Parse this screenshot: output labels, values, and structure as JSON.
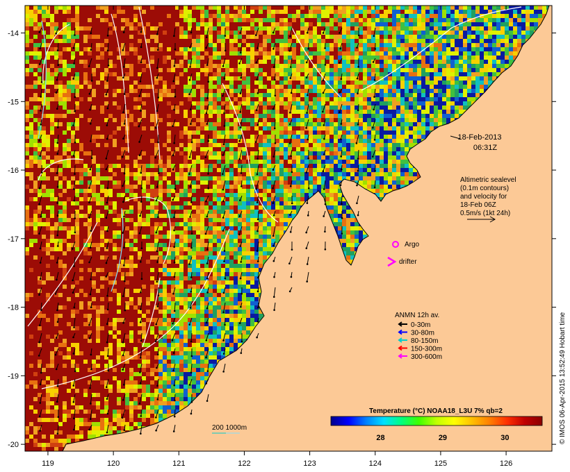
{
  "map": {
    "lon_range": [
      118.65,
      126.7
    ],
    "lat_range": [
      -20.1,
      -13.6
    ],
    "lon_ticks": [
      "119",
      "120",
      "121",
      "122",
      "123",
      "124",
      "125",
      "126"
    ],
    "lat_ticks": [
      "-14",
      "-15",
      "-16",
      "-17",
      "-18",
      "-19",
      "-20"
    ],
    "land_color": "#fcc996",
    "coast_color": "#000000"
  },
  "annotations": {
    "date_line1": "18-Feb-2013",
    "date_line2": "06:31Z",
    "alt_line1": "Altimetric sealevel",
    "alt_line2": "(0.1m contours)",
    "alt_line3": "and velocity for",
    "alt_line4": "18-Feb 06Z",
    "alt_line5": "0.5m/s (1kt 24h)",
    "argo_label": "Argo",
    "drifter_label": "drifter",
    "isobath_label": "200  1000m",
    "credit": "© IMOS 06-Apr-2015 13:52:49 Hobart time"
  },
  "legend": {
    "title": "ANMN 12h av.",
    "items": [
      {
        "label": "0-30m",
        "color": "#000000"
      },
      {
        "label": "30-80m",
        "color": "#0000ff"
      },
      {
        "label": "80-150m",
        "color": "#00cccc"
      },
      {
        "label": "150-300m",
        "color": "#ff0000"
      },
      {
        "label": "300-600m",
        "color": "#ff00ff"
      }
    ]
  },
  "colorbar": {
    "title": "Temperature (°C) NOAA18_L3U 7% qb=2",
    "range": [
      27.2,
      30.6
    ],
    "ticks": [
      "28",
      "29",
      "30"
    ],
    "colors": [
      "#00008b",
      "#0000ff",
      "#0080ff",
      "#00e0ff",
      "#00ff80",
      "#40ff00",
      "#c0ff00",
      "#ffff00",
      "#ffc000",
      "#ff8000",
      "#ff3000",
      "#c00000",
      "#8b0000"
    ]
  }
}
